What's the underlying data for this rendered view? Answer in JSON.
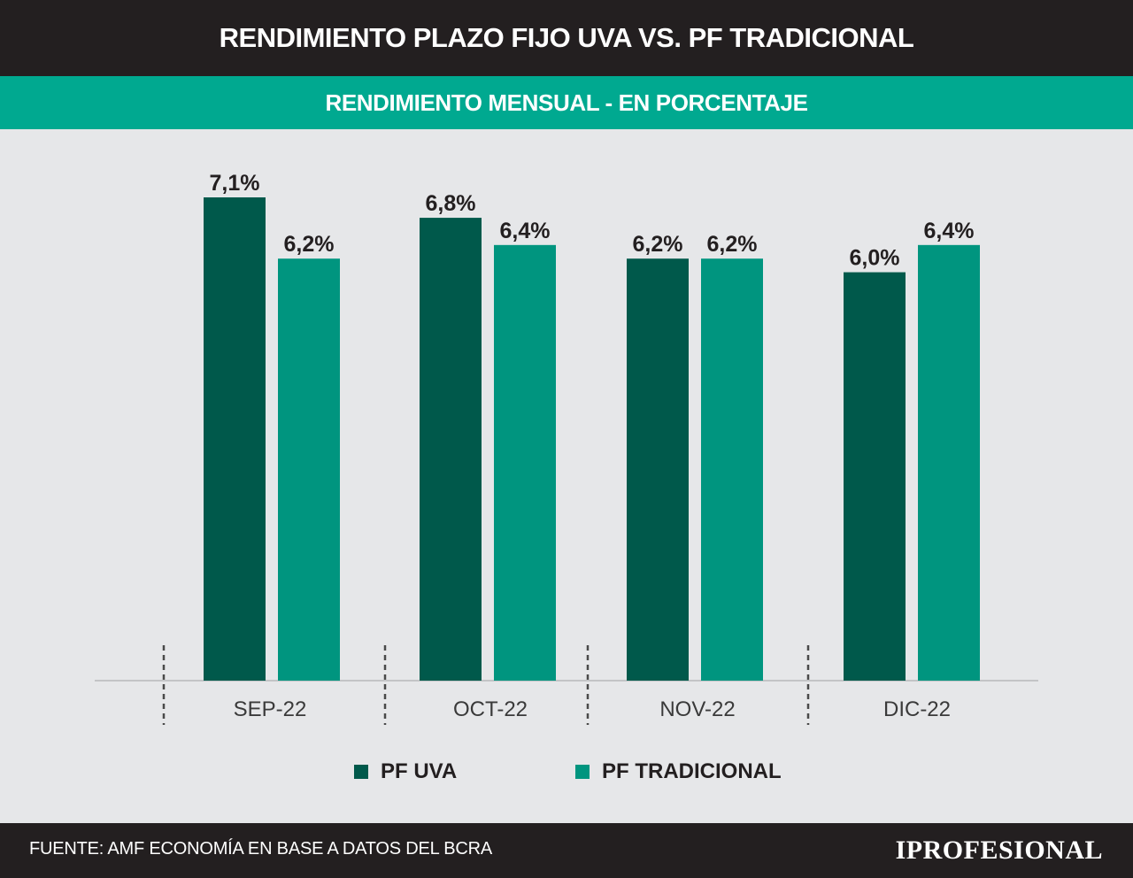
{
  "header": {
    "title": "RENDIMIENTO PLAZO FIJO UVA VS. PF TRADICIONAL",
    "subtitle": "RENDIMIENTO MENSUAL - EN PORCENTAJE"
  },
  "colors": {
    "title_bg": "#231f20",
    "subtitle_bg": "#00a990",
    "pf_uva": "#00594b",
    "pf_tradicional": "#00957f",
    "background": "#e6e7e9"
  },
  "chart_data": {
    "type": "bar",
    "categories": [
      "SEP-22",
      "OCT-22",
      "NOV-22",
      "DIC-22"
    ],
    "series": [
      {
        "name": "PF UVA",
        "values": [
          7.1,
          6.8,
          6.2,
          6.0
        ],
        "labels": [
          "7,1%",
          "6,8%",
          "6,2%",
          "6,0%"
        ]
      },
      {
        "name": "PF TRADICIONAL",
        "values": [
          6.2,
          6.4,
          6.2,
          6.4
        ],
        "labels": [
          "6,2%",
          "6,4%",
          "6,2%",
          "6,4%"
        ]
      }
    ],
    "ylim": [
      0,
      7.1
    ],
    "grid": false,
    "legend_position": "bottom"
  },
  "footer": {
    "source": "FUENTE: AMF ECONOMÍA EN BASE A DATOS DEL BCRA",
    "logo": "IPROFESIONAL"
  }
}
